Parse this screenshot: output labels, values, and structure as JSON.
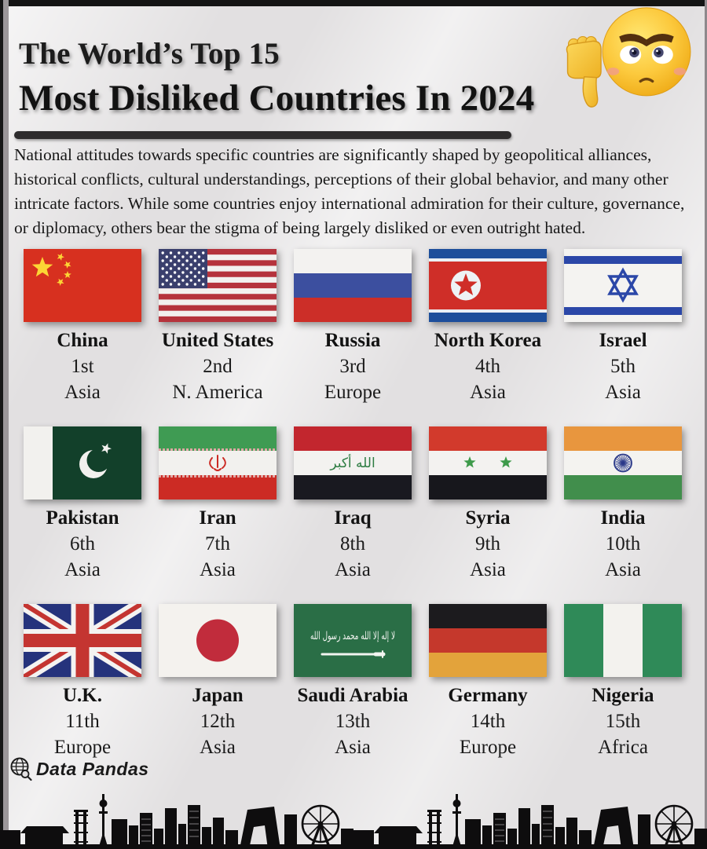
{
  "header": {
    "title_line1": "The World’s Top 15",
    "title_line2": "Most Disliked Countries In 2024",
    "emoji": "angry-face-with-thumbs-down"
  },
  "intro": "National attitudes towards specific countries are significantly shaped by geopolitical alliances, historical conflicts, cultural understandings, perceptions of their global behavior, and many other intricate factors. While some countries enjoy international admiration for their culture, governance, or diplomacy, others bear the stigma of being largely disliked or even outright hated.",
  "countries": [
    {
      "name": "China",
      "rank": "1st",
      "continent": "Asia",
      "flag": "china-flag"
    },
    {
      "name": "United States",
      "rank": "2nd",
      "continent": "N. America",
      "flag": "united-states-flag"
    },
    {
      "name": "Russia",
      "rank": "3rd",
      "continent": "Europe",
      "flag": "russia-flag"
    },
    {
      "name": "North Korea",
      "rank": "4th",
      "continent": "Asia",
      "flag": "north-korea-flag"
    },
    {
      "name": "Israel",
      "rank": "5th",
      "continent": "Asia",
      "flag": "israel-flag"
    },
    {
      "name": "Pakistan",
      "rank": "6th",
      "continent": "Asia",
      "flag": "pakistan-flag"
    },
    {
      "name": "Iran",
      "rank": "7th",
      "continent": "Asia",
      "flag": "iran-flag"
    },
    {
      "name": "Iraq",
      "rank": "8th",
      "continent": "Asia",
      "flag": "iraq-flag"
    },
    {
      "name": "Syria",
      "rank": "9th",
      "continent": "Asia",
      "flag": "syria-flag"
    },
    {
      "name": "India",
      "rank": "10th",
      "continent": "Asia",
      "flag": "india-flag"
    },
    {
      "name": "U.K.",
      "rank": "11th",
      "continent": "Europe",
      "flag": "uk-flag"
    },
    {
      "name": "Japan",
      "rank": "12th",
      "continent": "Asia",
      "flag": "japan-flag"
    },
    {
      "name": "Saudi Arabia",
      "rank": "13th",
      "continent": "Asia",
      "flag": "saudi-arabia-flag"
    },
    {
      "name": "Germany",
      "rank": "14th",
      "continent": "Europe",
      "flag": "germany-flag"
    },
    {
      "name": "Nigeria",
      "rank": "15th",
      "continent": "Africa",
      "flag": "nigeria-flag"
    }
  ],
  "footer": {
    "brand": "Data Pandas"
  },
  "colors": {
    "background": "#e2e0e1",
    "underline": "#2e2c2d",
    "text": "#161616",
    "skyline": "#0e0d0e"
  }
}
